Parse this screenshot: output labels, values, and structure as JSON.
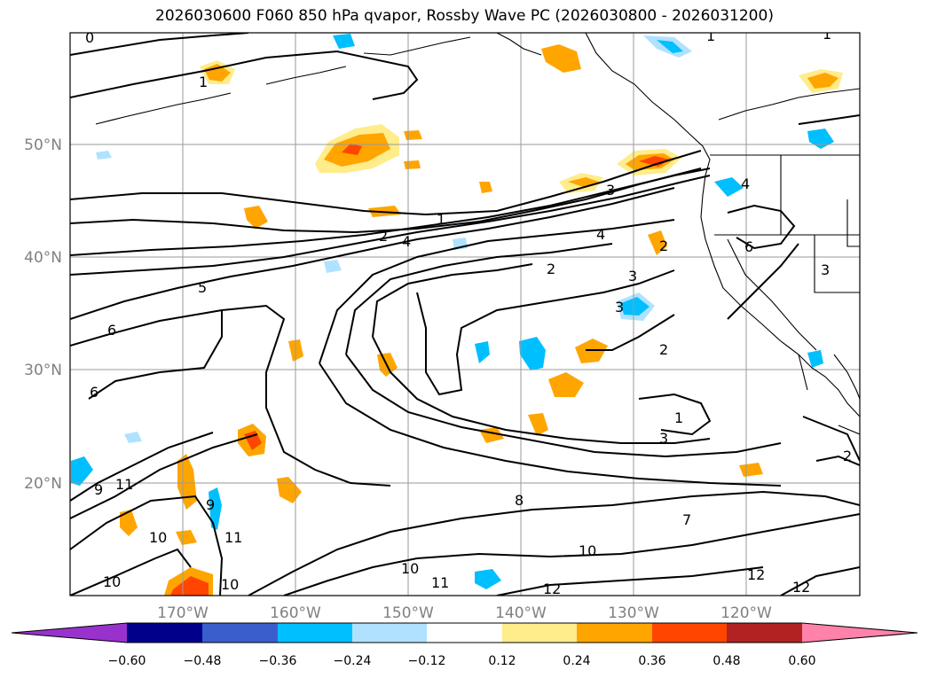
{
  "title": "2026030600 F060 850 hPa qvapor, Rossby Wave PC (2026030800 - 2026031200)",
  "lat_labels": [
    "50°N",
    "40°N",
    "30°N",
    "20°N"
  ],
  "lon_labels": [
    "170°W",
    "160°W",
    "150°W",
    "140°W",
    "130°W",
    "120°W"
  ],
  "colorbar": {
    "ticks": [
      "−0.60",
      "−0.48",
      "−0.36",
      "−0.24",
      "−0.12",
      "0.12",
      "0.24",
      "0.36",
      "0.48",
      "0.60"
    ],
    "colors": {
      "below": "#9932CC",
      "c1": "#00008B",
      "c2": "#3A5FCD",
      "c3": "#00BFFF",
      "c4": "#B0E2FF",
      "c5": "#FFFFFF",
      "c6": "#FFEC8B",
      "c7": "#FFA500",
      "c8": "#FF4500",
      "c9": "#B22222",
      "above": "#FF82AB"
    }
  },
  "contour_labels": [
    "0",
    "1",
    "1",
    "1",
    "1",
    "2",
    "4",
    "3",
    "4",
    "5",
    "6",
    "6",
    "2",
    "3",
    "2",
    "3",
    "2",
    "3",
    "1",
    "4",
    "6",
    "3",
    "8",
    "7",
    "9",
    "11",
    "9",
    "10",
    "10",
    "11",
    "10",
    "10",
    "11",
    "10",
    "12",
    "12",
    "12",
    "2"
  ]
}
